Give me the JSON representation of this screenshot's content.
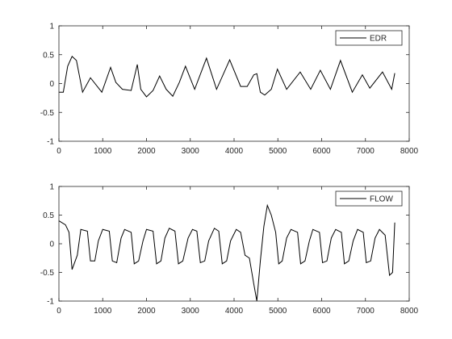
{
  "chart_data": [
    {
      "type": "line",
      "x": [
        0,
        100,
        200,
        300,
        400,
        540,
        720,
        980,
        1180,
        1300,
        1450,
        1650,
        1790,
        1870,
        2000,
        2150,
        2300,
        2450,
        2600,
        2750,
        2890,
        3100,
        3370,
        3600,
        3900,
        4150,
        4300,
        4450,
        4520,
        4600,
        4700,
        4850,
        4990,
        5200,
        5510,
        5750,
        5970,
        6200,
        6430,
        6700,
        6930,
        7100,
        7390,
        7600,
        7670
      ],
      "series": [
        {
          "name": "EDR",
          "color": "#000000",
          "values": [
            -0.15,
            -0.15,
            0.3,
            0.47,
            0.4,
            -0.15,
            0.1,
            -0.15,
            0.28,
            0.02,
            -0.1,
            -0.12,
            0.33,
            -0.1,
            -0.23,
            -0.12,
            0.13,
            -0.1,
            -0.22,
            0.02,
            0.3,
            -0.1,
            0.44,
            -0.1,
            0.41,
            -0.05,
            -0.05,
            0.15,
            0.17,
            -0.15,
            -0.2,
            -0.1,
            0.25,
            -0.1,
            0.2,
            -0.1,
            0.23,
            -0.1,
            0.4,
            -0.15,
            0.15,
            -0.08,
            0.2,
            -0.1,
            0.18
          ]
        }
      ],
      "xlim": [
        0,
        8000
      ],
      "ylim": [
        -1,
        1
      ],
      "xticks": [
        0,
        1000,
        2000,
        3000,
        4000,
        5000,
        6000,
        7000,
        8000
      ],
      "yticks": [
        -1,
        -0.5,
        0,
        0.5,
        1
      ],
      "legend": "northeast"
    },
    {
      "type": "line",
      "x": [
        0,
        150,
        230,
        300,
        420,
        500,
        650,
        720,
        820,
        900,
        1000,
        1150,
        1220,
        1320,
        1420,
        1500,
        1650,
        1720,
        1820,
        1920,
        2000,
        2150,
        2230,
        2330,
        2420,
        2520,
        2650,
        2730,
        2830,
        2950,
        3050,
        3150,
        3230,
        3330,
        3420,
        3550,
        3650,
        3730,
        3830,
        3920,
        4050,
        4150,
        4250,
        4350,
        4450,
        4520,
        4600,
        4680,
        4760,
        4850,
        4950,
        5020,
        5100,
        5200,
        5300,
        5450,
        5520,
        5620,
        5720,
        5800,
        5950,
        6020,
        6120,
        6220,
        6320,
        6450,
        6520,
        6620,
        6720,
        6820,
        6950,
        7020,
        7120,
        7220,
        7320,
        7450,
        7550,
        7620,
        7670
      ],
      "series": [
        {
          "name": "FLOW",
          "color": "#000000",
          "values": [
            0.4,
            0.33,
            0.2,
            -0.45,
            -0.2,
            0.25,
            0.22,
            -0.3,
            -0.3,
            0.05,
            0.25,
            0.22,
            -0.3,
            -0.33,
            0.1,
            0.25,
            0.2,
            -0.35,
            -0.3,
            0.05,
            0.25,
            0.22,
            -0.35,
            -0.3,
            0.1,
            0.27,
            0.22,
            -0.35,
            -0.3,
            0.1,
            0.25,
            0.22,
            -0.33,
            -0.3,
            0.05,
            0.27,
            0.22,
            -0.35,
            -0.3,
            0.05,
            0.25,
            0.2,
            -0.2,
            -0.25,
            -0.7,
            -1.0,
            -0.3,
            0.3,
            0.67,
            0.5,
            0.2,
            -0.35,
            -0.3,
            0.1,
            0.25,
            0.2,
            -0.35,
            -0.3,
            0.05,
            0.25,
            0.2,
            -0.33,
            -0.3,
            0.1,
            0.25,
            0.2,
            -0.35,
            -0.3,
            0.05,
            0.25,
            0.2,
            -0.33,
            -0.3,
            0.1,
            0.25,
            0.15,
            -0.55,
            -0.5,
            0.37
          ]
        }
      ],
      "xlim": [
        0,
        8000
      ],
      "ylim": [
        -1,
        1
      ],
      "xticks": [
        0,
        1000,
        2000,
        3000,
        4000,
        5000,
        6000,
        7000,
        8000
      ],
      "yticks": [
        -1,
        -0.5,
        0,
        0.5,
        1
      ],
      "legend": "northeast"
    }
  ]
}
